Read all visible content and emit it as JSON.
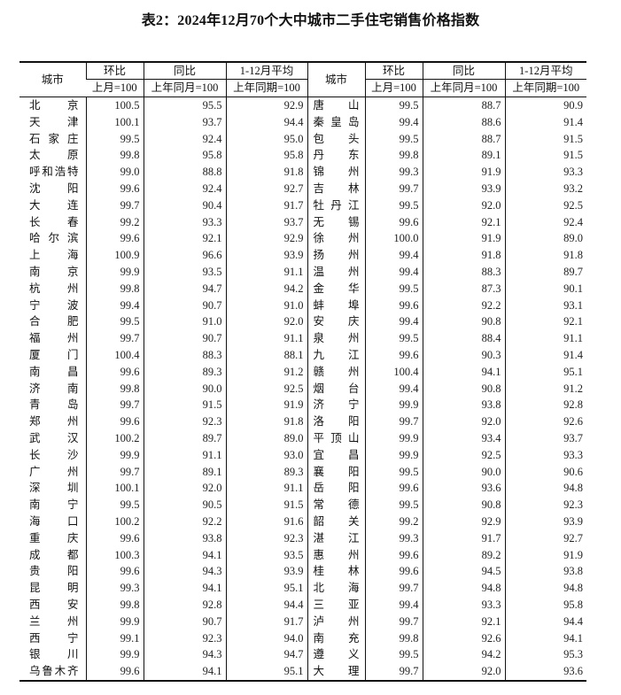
{
  "title": "表2：2024年12月70个大中城市二手住宅销售价格指数",
  "headers": {
    "city": "城市",
    "mom": "环比",
    "yoy": "同比",
    "avg": "1-12月平均",
    "mom_base": "上月=100",
    "yoy_base": "上年同月=100",
    "avg_base": "上年同期=100"
  },
  "rows": [
    {
      "left": [
        "北京",
        "100.5",
        "95.5",
        "92.9"
      ],
      "right": [
        "唐山",
        "99.5",
        "88.7",
        "90.9"
      ]
    },
    {
      "left": [
        "天津",
        "100.1",
        "93.7",
        "94.4"
      ],
      "right": [
        "秦皇岛",
        "99.4",
        "88.6",
        "91.4"
      ]
    },
    {
      "left": [
        "石家庄",
        "99.5",
        "92.4",
        "95.0"
      ],
      "right": [
        "包头",
        "99.5",
        "88.7",
        "91.5"
      ]
    },
    {
      "left": [
        "太原",
        "99.8",
        "95.8",
        "95.8"
      ],
      "right": [
        "丹东",
        "99.8",
        "89.1",
        "91.5"
      ]
    },
    {
      "left": [
        "呼和浩特",
        "99.0",
        "88.8",
        "91.8"
      ],
      "right": [
        "锦州",
        "99.3",
        "91.9",
        "93.3"
      ]
    },
    {
      "left": [
        "沈阳",
        "99.6",
        "92.4",
        "92.7"
      ],
      "right": [
        "吉林",
        "99.7",
        "93.9",
        "93.2"
      ]
    },
    {
      "left": [
        "大连",
        "99.7",
        "90.4",
        "91.7"
      ],
      "right": [
        "牡丹江",
        "99.5",
        "92.0",
        "92.5"
      ]
    },
    {
      "left": [
        "长春",
        "99.2",
        "93.3",
        "93.7"
      ],
      "right": [
        "无锡",
        "99.6",
        "92.1",
        "92.4"
      ]
    },
    {
      "left": [
        "哈尔滨",
        "99.6",
        "92.1",
        "92.9"
      ],
      "right": [
        "徐州",
        "100.0",
        "91.9",
        "89.0"
      ]
    },
    {
      "left": [
        "上海",
        "100.9",
        "96.6",
        "93.9"
      ],
      "right": [
        "扬州",
        "99.4",
        "91.8",
        "91.8"
      ]
    },
    {
      "left": [
        "南京",
        "99.9",
        "93.5",
        "91.1"
      ],
      "right": [
        "温州",
        "99.4",
        "88.3",
        "89.7"
      ]
    },
    {
      "left": [
        "杭州",
        "99.8",
        "94.7",
        "94.2"
      ],
      "right": [
        "金华",
        "99.5",
        "87.3",
        "90.1"
      ]
    },
    {
      "left": [
        "宁波",
        "99.4",
        "90.7",
        "91.0"
      ],
      "right": [
        "蚌埠",
        "99.6",
        "92.2",
        "93.1"
      ]
    },
    {
      "left": [
        "合肥",
        "99.5",
        "91.0",
        "92.0"
      ],
      "right": [
        "安庆",
        "99.4",
        "90.8",
        "92.1"
      ]
    },
    {
      "left": [
        "福州",
        "99.7",
        "90.7",
        "91.1"
      ],
      "right": [
        "泉州",
        "99.5",
        "88.4",
        "91.1"
      ]
    },
    {
      "left": [
        "厦门",
        "100.4",
        "88.3",
        "88.1"
      ],
      "right": [
        "九江",
        "99.6",
        "90.3",
        "91.4"
      ]
    },
    {
      "left": [
        "南昌",
        "99.6",
        "89.3",
        "91.2"
      ],
      "right": [
        "赣州",
        "100.4",
        "94.1",
        "95.1"
      ]
    },
    {
      "left": [
        "济南",
        "99.8",
        "90.0",
        "92.5"
      ],
      "right": [
        "烟台",
        "99.4",
        "90.8",
        "91.2"
      ]
    },
    {
      "left": [
        "青岛",
        "99.7",
        "91.5",
        "91.9"
      ],
      "right": [
        "济宁",
        "99.9",
        "93.8",
        "92.8"
      ]
    },
    {
      "left": [
        "郑州",
        "99.6",
        "92.3",
        "91.8"
      ],
      "right": [
        "洛阳",
        "99.7",
        "92.0",
        "92.6"
      ]
    },
    {
      "left": [
        "武汉",
        "100.2",
        "89.7",
        "89.0"
      ],
      "right": [
        "平顶山",
        "99.9",
        "93.4",
        "93.7"
      ]
    },
    {
      "left": [
        "长沙",
        "99.9",
        "91.1",
        "93.0"
      ],
      "right": [
        "宜昌",
        "99.9",
        "92.5",
        "93.3"
      ]
    },
    {
      "left": [
        "广州",
        "99.7",
        "89.1",
        "89.3"
      ],
      "right": [
        "襄阳",
        "99.5",
        "90.0",
        "90.6"
      ]
    },
    {
      "left": [
        "深圳",
        "100.1",
        "92.0",
        "91.1"
      ],
      "right": [
        "岳阳",
        "99.6",
        "93.6",
        "94.8"
      ]
    },
    {
      "left": [
        "南宁",
        "99.5",
        "90.5",
        "91.5"
      ],
      "right": [
        "常德",
        "99.5",
        "90.8",
        "92.3"
      ]
    },
    {
      "left": [
        "海口",
        "100.2",
        "92.2",
        "91.6"
      ],
      "right": [
        "韶关",
        "99.2",
        "92.9",
        "93.9"
      ]
    },
    {
      "left": [
        "重庆",
        "99.6",
        "93.8",
        "92.3"
      ],
      "right": [
        "湛江",
        "99.3",
        "91.7",
        "92.7"
      ]
    },
    {
      "left": [
        "成都",
        "100.3",
        "94.1",
        "93.5"
      ],
      "right": [
        "惠州",
        "99.6",
        "89.2",
        "91.9"
      ]
    },
    {
      "left": [
        "贵阳",
        "99.6",
        "94.3",
        "93.9"
      ],
      "right": [
        "桂林",
        "99.6",
        "94.5",
        "93.8"
      ]
    },
    {
      "left": [
        "昆明",
        "99.3",
        "94.1",
        "95.1"
      ],
      "right": [
        "北海",
        "99.7",
        "94.8",
        "94.8"
      ]
    },
    {
      "left": [
        "西安",
        "99.8",
        "92.8",
        "94.4"
      ],
      "right": [
        "三亚",
        "99.4",
        "93.3",
        "95.8"
      ]
    },
    {
      "left": [
        "兰州",
        "99.9",
        "90.7",
        "91.7"
      ],
      "right": [
        "泸州",
        "99.7",
        "92.1",
        "94.4"
      ]
    },
    {
      "left": [
        "西宁",
        "99.1",
        "92.3",
        "94.0"
      ],
      "right": [
        "南充",
        "99.8",
        "92.6",
        "94.1"
      ]
    },
    {
      "left": [
        "银川",
        "99.9",
        "94.3",
        "94.7"
      ],
      "right": [
        "遵义",
        "99.5",
        "94.2",
        "95.3"
      ]
    },
    {
      "left": [
        "乌鲁木齐",
        "99.6",
        "94.1",
        "95.1"
      ],
      "right": [
        "大理",
        "99.7",
        "92.0",
        "93.6"
      ]
    }
  ]
}
